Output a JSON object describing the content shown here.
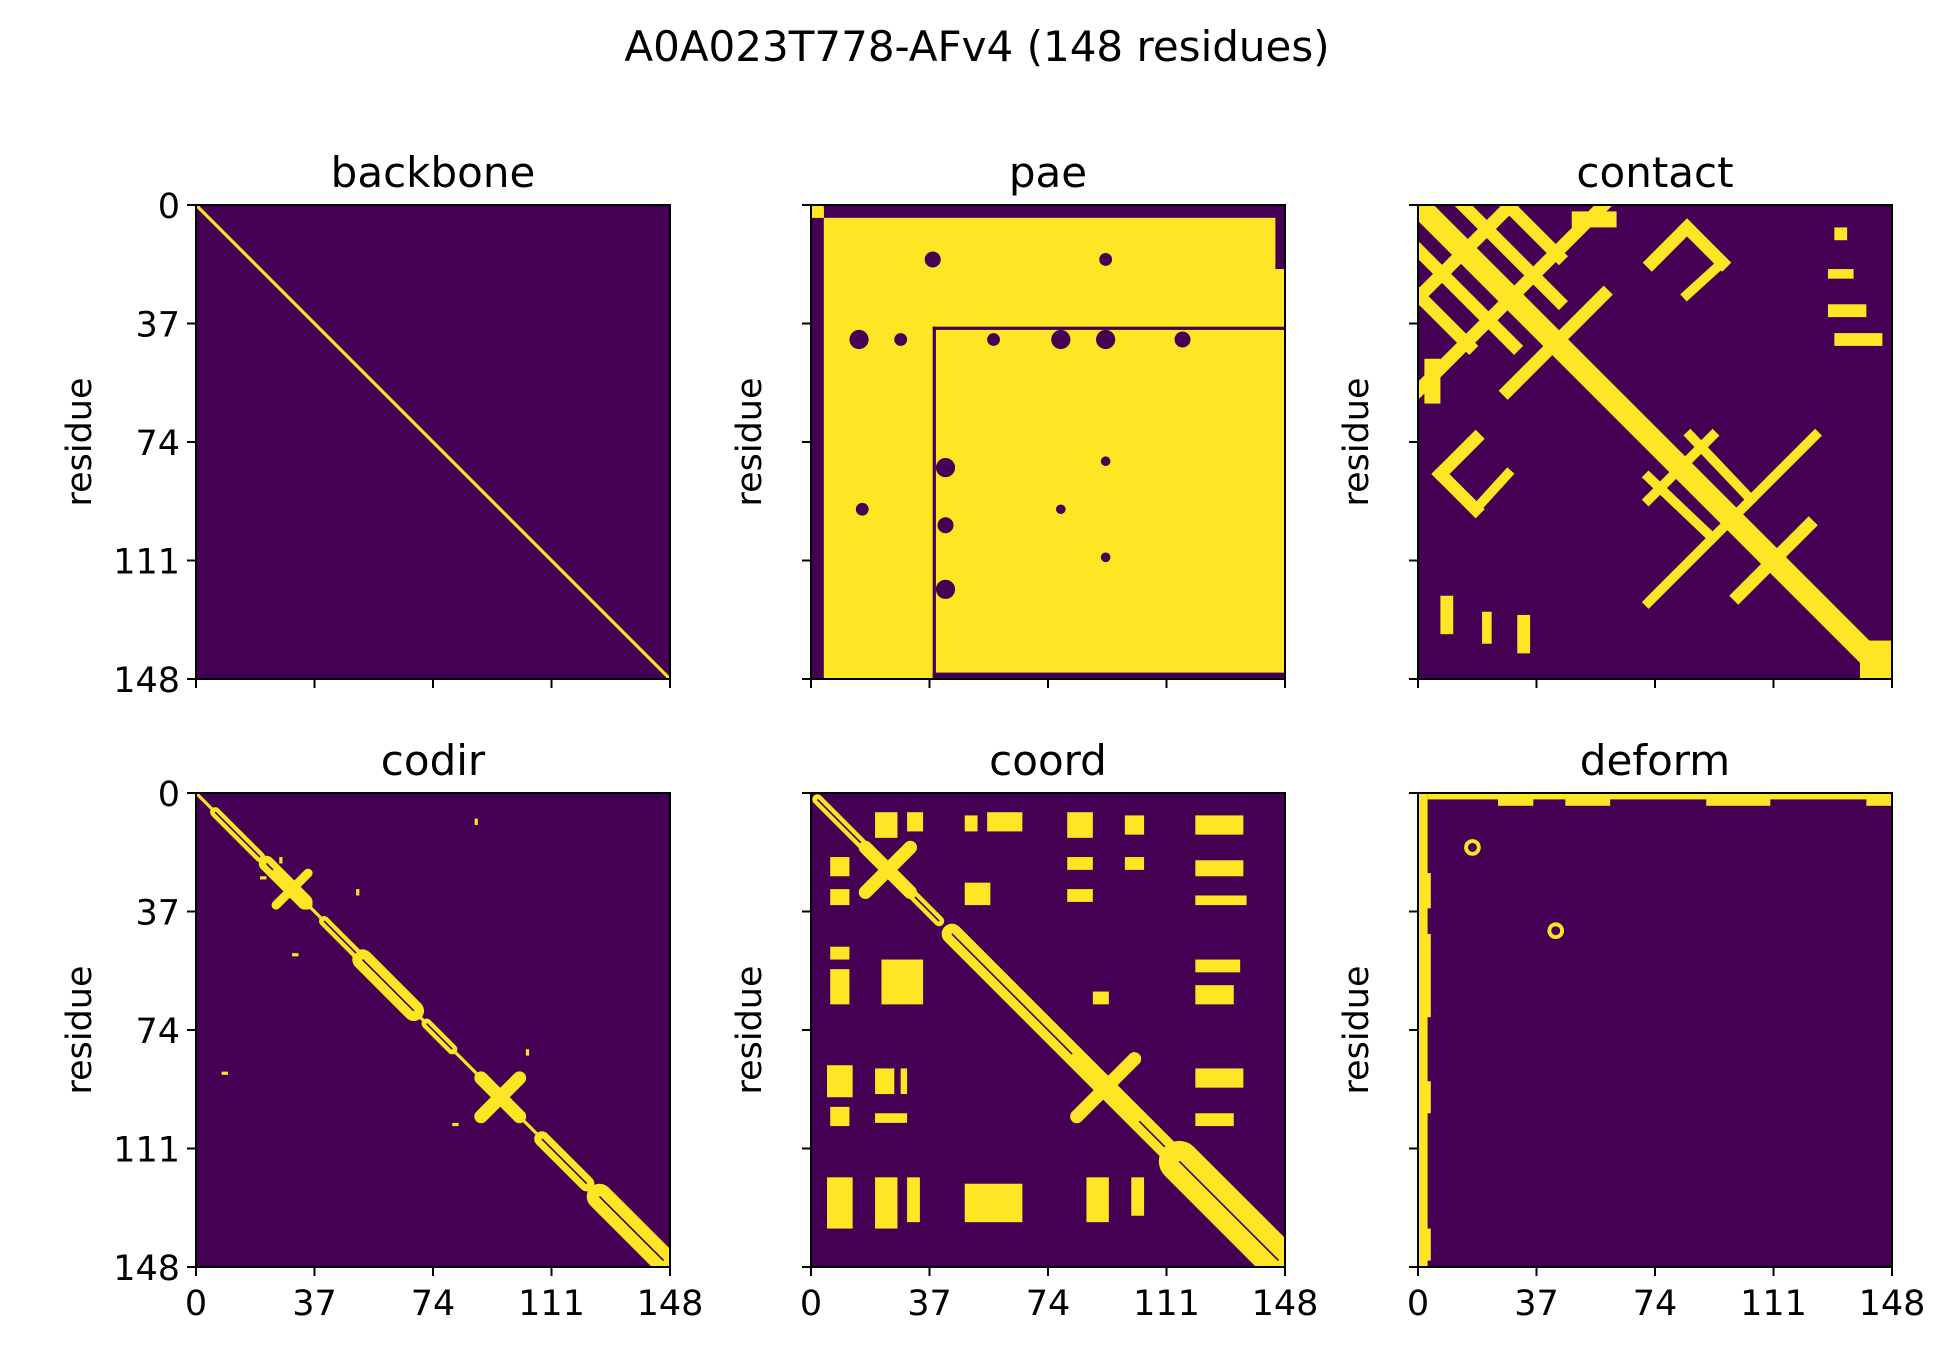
{
  "figure": {
    "title": "A0A023T778-AFv4 (148 residues)"
  },
  "colors": {
    "low": "#440154",
    "high": "#fde725",
    "axis": "#000000"
  },
  "chart_data": [
    {
      "type": "heatmap",
      "title": "backbone",
      "ylabel": "residue",
      "xlabel": "",
      "n": 148,
      "xlim": [
        0,
        148
      ],
      "ylim": [
        148,
        0
      ],
      "ticks": [
        0,
        37,
        74,
        111,
        148
      ],
      "xtick_labels_shown": false,
      "ytick_labels_shown": true,
      "features": [
        {
          "kind": "diag",
          "from": 0,
          "to": 148,
          "width": 1
        }
      ]
    },
    {
      "type": "heatmap",
      "title": "pae",
      "ylabel": "residue",
      "xlabel": "",
      "n": 148,
      "xlim": [
        0,
        148
      ],
      "ylim": [
        148,
        0
      ],
      "ticks": [
        0,
        37,
        74,
        111,
        148
      ],
      "xtick_labels_shown": false,
      "ytick_labels_shown": false,
      "background": "high",
      "features": [
        {
          "kind": "rect",
          "x0": 0,
          "x1": 1,
          "y0": 0,
          "y1": 148,
          "v": 0
        },
        {
          "kind": "rect",
          "x0": 0,
          "x1": 148,
          "y0": 0,
          "y1": 1,
          "v": 0
        },
        {
          "kind": "rect",
          "x0": 0,
          "x1": 4,
          "y0": 4,
          "y1": 148,
          "v": 0
        },
        {
          "kind": "rect",
          "x0": 4,
          "x1": 148,
          "y0": 0,
          "y1": 4,
          "v": 0
        },
        {
          "kind": "rect",
          "x0": 145,
          "x1": 148,
          "y0": 0,
          "y1": 20,
          "v": 0
        },
        {
          "kind": "rect",
          "x0": 0,
          "x1": 4,
          "y0": 0,
          "y1": 4,
          "v": 1
        },
        {
          "kind": "rect",
          "x0": 38,
          "x1": 39,
          "y0": 38,
          "y1": 148,
          "v": 0
        },
        {
          "kind": "rect",
          "x0": 38,
          "x1": 148,
          "y0": 38,
          "y1": 39,
          "v": 0
        },
        {
          "kind": "rect",
          "x0": 6,
          "x1": 7,
          "y0": 4,
          "y1": 148,
          "v": 1
        },
        {
          "kind": "circle",
          "cx": 38,
          "cy": 17,
          "r": 2.5,
          "v": 0
        },
        {
          "kind": "circle",
          "cx": 15,
          "cy": 42,
          "r": 3,
          "v": 0
        },
        {
          "kind": "circle",
          "cx": 28,
          "cy": 42,
          "r": 2,
          "v": 0
        },
        {
          "kind": "circle",
          "cx": 57,
          "cy": 42,
          "r": 2,
          "v": 0
        },
        {
          "kind": "circle",
          "cx": 78,
          "cy": 42,
          "r": 3,
          "v": 0
        },
        {
          "kind": "circle",
          "cx": 92,
          "cy": 42,
          "r": 3,
          "v": 0
        },
        {
          "kind": "circle",
          "cx": 116,
          "cy": 42,
          "r": 2.5,
          "v": 0
        },
        {
          "kind": "circle",
          "cx": 92,
          "cy": 17,
          "r": 2,
          "v": 0
        },
        {
          "kind": "circle",
          "cx": 42,
          "cy": 82,
          "r": 3,
          "v": 0
        },
        {
          "kind": "circle",
          "cx": 42,
          "cy": 100,
          "r": 2.5,
          "v": 0
        },
        {
          "kind": "circle",
          "cx": 42,
          "cy": 120,
          "r": 3,
          "v": 0
        },
        {
          "kind": "circle",
          "cx": 16,
          "cy": 95,
          "r": 2,
          "v": 0
        },
        {
          "kind": "circle",
          "cx": 78,
          "cy": 95,
          "r": 1.5,
          "v": 0
        },
        {
          "kind": "circle",
          "cx": 92,
          "cy": 80,
          "r": 1.5,
          "v": 0
        },
        {
          "kind": "circle",
          "cx": 92,
          "cy": 110,
          "r": 1.5,
          "v": 0
        },
        {
          "kind": "rect",
          "x0": 38,
          "x1": 148,
          "y0": 146,
          "y1": 148,
          "v": 0
        }
      ]
    },
    {
      "type": "heatmap",
      "title": "contact",
      "ylabel": "residue",
      "xlabel": "",
      "n": 148,
      "xlim": [
        0,
        148
      ],
      "ylim": [
        148,
        0
      ],
      "ticks": [
        0,
        37,
        74,
        111,
        148
      ],
      "xtick_labels_shown": false,
      "ytick_labels_shown": false,
      "features": [
        {
          "kind": "diag",
          "from": 0,
          "to": 148,
          "width": 7
        },
        {
          "kind": "antidiag",
          "x0": 0,
          "y0": 29,
          "x1": 29,
          "y1": 0,
          "width": 4
        },
        {
          "kind": "antidiag",
          "x0": 0,
          "y0": 58,
          "x1": 58,
          "y1": 0,
          "width": 4
        },
        {
          "kind": "line",
          "x0": 14,
          "y0": 0,
          "x1": 44,
          "y1": 30,
          "width": 4
        },
        {
          "kind": "line",
          "x0": 28,
          "y0": 0,
          "x1": 44,
          "y1": 16,
          "width": 4
        },
        {
          "kind": "line",
          "x0": 0,
          "y0": 14,
          "x1": 30,
          "y1": 44,
          "width": 4
        },
        {
          "kind": "line",
          "x0": 0,
          "y0": 28,
          "x1": 16,
          "y1": 44,
          "width": 4
        },
        {
          "kind": "antidiag",
          "x0": 28,
          "y0": 58,
          "x1": 58,
          "y1": 28,
          "width": 4
        },
        {
          "kind": "antidiag",
          "x0": 100,
          "y0": 122,
          "x1": 122,
          "y1": 100,
          "width": 4
        },
        {
          "kind": "antidiag",
          "x0": 72,
          "y0": 124,
          "x1": 124,
          "y1": 72,
          "width": 3
        },
        {
          "kind": "line",
          "x0": 85,
          "y0": 72,
          "x1": 104,
          "y1": 92,
          "width": 3
        },
        {
          "kind": "line",
          "x0": 72,
          "y0": 85,
          "x1": 92,
          "y1": 104,
          "width": 3
        },
        {
          "kind": "antidiag",
          "x0": 72,
          "y0": 92,
          "x1": 92,
          "y1": 72,
          "width": 3
        },
        {
          "kind": "line",
          "x0": 73,
          "y0": 18,
          "x1": 84,
          "y1": 7,
          "width": 4
        },
        {
          "kind": "line",
          "x0": 84,
          "y0": 7,
          "x1": 95,
          "y1": 18,
          "width": 4
        },
        {
          "kind": "line",
          "x0": 84,
          "y0": 28,
          "x1": 95,
          "y1": 18,
          "width": 3
        },
        {
          "kind": "line",
          "x0": 7,
          "y0": 84,
          "x1": 18,
          "y1": 95,
          "width": 4
        },
        {
          "kind": "line",
          "x0": 18,
          "y0": 73,
          "x1": 7,
          "y1": 84,
          "width": 4
        },
        {
          "kind": "line",
          "x0": 18,
          "y0": 95,
          "x1": 28,
          "y1": 84,
          "width": 3
        },
        {
          "kind": "rect",
          "x0": 130,
          "x1": 134,
          "y0": 7,
          "y1": 11,
          "v": 1
        },
        {
          "kind": "rect",
          "x0": 128,
          "x1": 136,
          "y0": 20,
          "y1": 23,
          "v": 1
        },
        {
          "kind": "rect",
          "x0": 128,
          "x1": 140,
          "y0": 31,
          "y1": 35,
          "v": 1
        },
        {
          "kind": "rect",
          "x0": 130,
          "x1": 145,
          "y0": 40,
          "y1": 44,
          "v": 1
        },
        {
          "kind": "rect",
          "x0": 7,
          "x1": 11,
          "y0": 122,
          "y1": 134,
          "v": 1
        },
        {
          "kind": "rect",
          "x0": 20,
          "x1": 23,
          "y0": 127,
          "y1": 137,
          "v": 1
        },
        {
          "kind": "rect",
          "x0": 31,
          "x1": 35,
          "y0": 128,
          "y1": 140,
          "v": 1
        },
        {
          "kind": "rect",
          "x0": 2,
          "x1": 7,
          "y0": 48,
          "y1": 62,
          "v": 1
        },
        {
          "kind": "rect",
          "x0": 48,
          "x1": 62,
          "y0": 2,
          "y1": 7,
          "v": 1
        },
        {
          "kind": "rect",
          "x0": 138,
          "x1": 148,
          "y0": 136,
          "y1": 148,
          "v": 1
        }
      ]
    },
    {
      "type": "heatmap",
      "title": "codir",
      "ylabel": "residue",
      "xlabel": "",
      "n": 148,
      "xlim": [
        0,
        148
      ],
      "ylim": [
        148,
        0
      ],
      "ticks": [
        0,
        37,
        74,
        111,
        148
      ],
      "xtick_labels": [
        "0",
        "37",
        "74",
        "111",
        "148"
      ],
      "xtick_labels_shown": true,
      "ytick_labels_shown": true,
      "features": [
        {
          "kind": "diag",
          "from": 0,
          "to": 148,
          "width": 1
        },
        {
          "kind": "diagblob",
          "from": 6,
          "to": 20,
          "width": 2
        },
        {
          "kind": "diagblob",
          "from": 22,
          "to": 34,
          "width": 3
        },
        {
          "kind": "cross",
          "c": 30,
          "len": 5,
          "width": 2
        },
        {
          "kind": "diagblob",
          "from": 52,
          "to": 68,
          "width": 4
        },
        {
          "kind": "diagblob",
          "from": 40,
          "to": 50,
          "width": 2
        },
        {
          "kind": "diagblob",
          "from": 72,
          "to": 80,
          "width": 2
        },
        {
          "kind": "cross",
          "c": 95,
          "len": 6,
          "width": 3
        },
        {
          "kind": "diagblob",
          "from": 108,
          "to": 122,
          "width": 3
        },
        {
          "kind": "diagblob",
          "from": 126,
          "to": 146,
          "width": 5
        },
        {
          "kind": "rect",
          "x0": 87,
          "x1": 88,
          "y0": 8,
          "y1": 10,
          "v": 1
        },
        {
          "kind": "rect",
          "x0": 8,
          "x1": 10,
          "y0": 87,
          "y1": 88,
          "v": 1
        },
        {
          "kind": "rect",
          "x0": 50,
          "x1": 51,
          "y0": 30,
          "y1": 32,
          "v": 1
        },
        {
          "kind": "rect",
          "x0": 30,
          "x1": 32,
          "y0": 50,
          "y1": 51,
          "v": 1
        },
        {
          "kind": "rect",
          "x0": 103,
          "x1": 104,
          "y0": 80,
          "y1": 82,
          "v": 1
        },
        {
          "kind": "rect",
          "x0": 80,
          "x1": 82,
          "y0": 103,
          "y1": 104,
          "v": 1
        },
        {
          "kind": "rect",
          "x0": 26,
          "x1": 27,
          "y0": 20,
          "y1": 22,
          "v": 1
        },
        {
          "kind": "rect",
          "x0": 20,
          "x1": 22,
          "y0": 26,
          "y1": 27,
          "v": 1
        }
      ]
    },
    {
      "type": "heatmap",
      "title": "coord",
      "ylabel": "residue",
      "xlabel": "",
      "n": 148,
      "xlim": [
        0,
        148
      ],
      "ylim": [
        148,
        0
      ],
      "ticks": [
        0,
        37,
        74,
        111,
        148
      ],
      "xtick_labels": [
        "0",
        "37",
        "74",
        "111",
        "148"
      ],
      "xtick_labels_shown": true,
      "ytick_labels_shown": false,
      "features": [
        {
          "kind": "diagblob",
          "from": 2,
          "to": 40,
          "width": 2
        },
        {
          "kind": "cross",
          "c": 24,
          "len": 7,
          "width": 3
        },
        {
          "kind": "diagblob",
          "from": 44,
          "to": 146,
          "width": 4
        },
        {
          "kind": "cross",
          "c": 92,
          "len": 9,
          "width": 3
        },
        {
          "kind": "diagblob",
          "from": 115,
          "to": 146,
          "width": 8
        },
        {
          "kind": "rect",
          "x0": 20,
          "x1": 27,
          "y0": 6,
          "y1": 14,
          "v": 1
        },
        {
          "kind": "rect",
          "x0": 30,
          "x1": 35,
          "y0": 6,
          "y1": 12,
          "v": 1
        },
        {
          "kind": "rect",
          "x0": 48,
          "x1": 52,
          "y0": 7,
          "y1": 12,
          "v": 1
        },
        {
          "kind": "rect",
          "x0": 55,
          "x1": 66,
          "y0": 6,
          "y1": 12,
          "v": 1
        },
        {
          "kind": "rect",
          "x0": 80,
          "x1": 88,
          "y0": 6,
          "y1": 14,
          "v": 1
        },
        {
          "kind": "rect",
          "x0": 98,
          "x1": 104,
          "y0": 7,
          "y1": 13,
          "v": 1
        },
        {
          "kind": "rect",
          "x0": 120,
          "x1": 135,
          "y0": 7,
          "y1": 13,
          "v": 1
        },
        {
          "kind": "rect",
          "x0": 120,
          "x1": 135,
          "y0": 21,
          "y1": 26,
          "v": 1
        },
        {
          "kind": "rect",
          "x0": 120,
          "x1": 136,
          "y0": 32,
          "y1": 35,
          "v": 1
        },
        {
          "kind": "rect",
          "x0": 80,
          "x1": 88,
          "y0": 20,
          "y1": 24,
          "v": 1
        },
        {
          "kind": "rect",
          "x0": 80,
          "x1": 88,
          "y0": 30,
          "y1": 34,
          "v": 1
        },
        {
          "kind": "rect",
          "x0": 98,
          "x1": 104,
          "y0": 20,
          "y1": 24,
          "v": 1
        },
        {
          "kind": "rect",
          "x0": 6,
          "x1": 12,
          "y0": 20,
          "y1": 26,
          "v": 1
        },
        {
          "kind": "rect",
          "x0": 6,
          "x1": 12,
          "y0": 30,
          "y1": 35,
          "v": 1
        },
        {
          "kind": "rect",
          "x0": 48,
          "x1": 56,
          "y0": 28,
          "y1": 35,
          "v": 1
        },
        {
          "kind": "rect",
          "x0": 6,
          "x1": 12,
          "y0": 48,
          "y1": 52,
          "v": 1
        },
        {
          "kind": "rect",
          "x0": 6,
          "x1": 12,
          "y0": 55,
          "y1": 66,
          "v": 1
        },
        {
          "kind": "rect",
          "x0": 22,
          "x1": 35,
          "y0": 52,
          "y1": 66,
          "v": 1
        },
        {
          "kind": "rect",
          "x0": 5,
          "x1": 13,
          "y0": 85,
          "y1": 95,
          "v": 1
        },
        {
          "kind": "rect",
          "x0": 20,
          "x1": 26,
          "y0": 86,
          "y1": 94,
          "v": 1
        },
        {
          "kind": "rect",
          "x0": 28,
          "x1": 30,
          "y0": 86,
          "y1": 94,
          "v": 1
        },
        {
          "kind": "rect",
          "x0": 6,
          "x1": 12,
          "y0": 98,
          "y1": 104,
          "v": 1
        },
        {
          "kind": "rect",
          "x0": 20,
          "x1": 30,
          "y0": 100,
          "y1": 103,
          "v": 1
        },
        {
          "kind": "rect",
          "x0": 120,
          "x1": 135,
          "y0": 86,
          "y1": 92,
          "v": 1
        },
        {
          "kind": "rect",
          "x0": 120,
          "x1": 132,
          "y0": 100,
          "y1": 104,
          "v": 1
        },
        {
          "kind": "rect",
          "x0": 5,
          "x1": 13,
          "y0": 120,
          "y1": 136,
          "v": 1
        },
        {
          "kind": "rect",
          "x0": 20,
          "x1": 27,
          "y0": 120,
          "y1": 136,
          "v": 1
        },
        {
          "kind": "rect",
          "x0": 30,
          "x1": 34,
          "y0": 120,
          "y1": 134,
          "v": 1
        },
        {
          "kind": "rect",
          "x0": 48,
          "x1": 66,
          "y0": 122,
          "y1": 134,
          "v": 1
        },
        {
          "kind": "rect",
          "x0": 86,
          "x1": 93,
          "y0": 120,
          "y1": 134,
          "v": 1
        },
        {
          "kind": "rect",
          "x0": 100,
          "x1": 104,
          "y0": 120,
          "y1": 132,
          "v": 1
        },
        {
          "kind": "rect",
          "x0": 120,
          "x1": 134,
          "y0": 52,
          "y1": 56,
          "v": 1
        },
        {
          "kind": "rect",
          "x0": 120,
          "x1": 132,
          "y0": 60,
          "y1": 66,
          "v": 1
        },
        {
          "kind": "rect",
          "x0": 88,
          "x1": 93,
          "y0": 62,
          "y1": 66,
          "v": 1
        }
      ]
    },
    {
      "type": "heatmap",
      "title": "deform",
      "ylabel": "residue",
      "xlabel": "",
      "n": 148,
      "xlim": [
        0,
        148
      ],
      "ylim": [
        148,
        0
      ],
      "ticks": [
        0,
        37,
        74,
        111,
        148
      ],
      "xtick_labels": [
        "0",
        "37",
        "74",
        "111",
        "148"
      ],
      "xtick_labels_shown": true,
      "ytick_labels_shown": false,
      "features": [
        {
          "kind": "rect",
          "x0": 0,
          "x1": 3,
          "y0": 0,
          "y1": 148,
          "v": 1
        },
        {
          "kind": "rect",
          "x0": 3,
          "x1": 148,
          "y0": 0,
          "y1": 2,
          "v": 1
        },
        {
          "kind": "rect",
          "x0": 0,
          "x1": 4,
          "y0": 25,
          "y1": 36,
          "v": 1
        },
        {
          "kind": "rect",
          "x0": 0,
          "x1": 4,
          "y0": 44,
          "y1": 70,
          "v": 1
        },
        {
          "kind": "rect",
          "x0": 0,
          "x1": 4,
          "y0": 90,
          "y1": 100,
          "v": 1
        },
        {
          "kind": "rect",
          "x0": 0,
          "x1": 4,
          "y0": 136,
          "y1": 146,
          "v": 1
        },
        {
          "kind": "rect",
          "x0": 25,
          "x1": 36,
          "y0": 0,
          "y1": 4,
          "v": 1
        },
        {
          "kind": "rect",
          "x0": 46,
          "x1": 60,
          "y0": 0,
          "y1": 4,
          "v": 1
        },
        {
          "kind": "rect",
          "x0": 90,
          "x1": 110,
          "y0": 0,
          "y1": 4,
          "v": 1
        },
        {
          "kind": "rect",
          "x0": 140,
          "x1": 148,
          "y0": 0,
          "y1": 4,
          "v": 1
        },
        {
          "kind": "ring",
          "cx": 17,
          "cy": 17,
          "r": 2
        },
        {
          "kind": "ring",
          "cx": 43,
          "cy": 43,
          "r": 2
        }
      ]
    }
  ]
}
